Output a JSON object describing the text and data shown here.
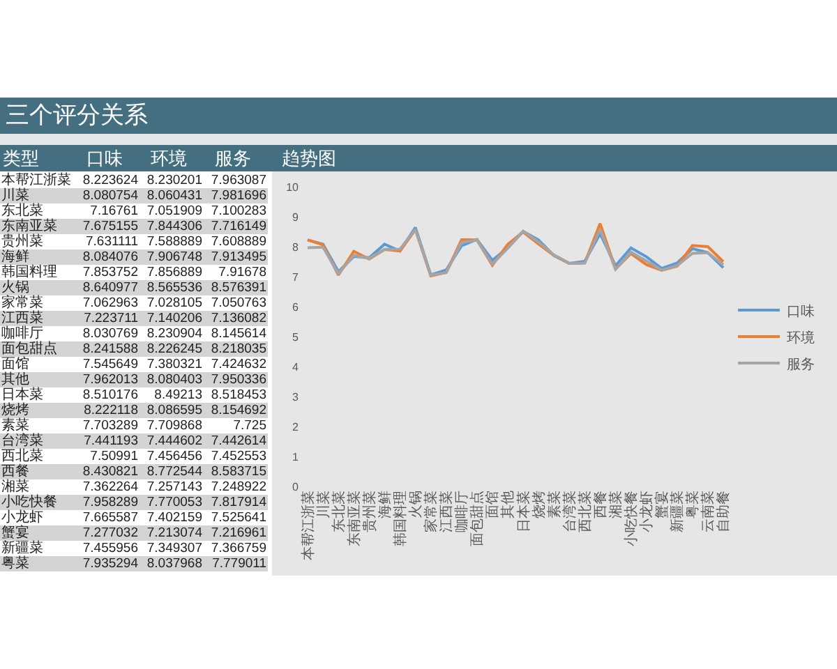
{
  "chart_data": {
    "type": "line",
    "title": "三个评分关系",
    "subtitle": "趋势图",
    "annotations": [
      "类型",
      "8.223624",
      "8.230201",
      "7.963087",
      "8.080754",
      "8.060431",
      "7.981696",
      "7.16761",
      "7.051909",
      "7.100283",
      "7.675155",
      "7.844306",
      "7.716149",
      "7.631111",
      "7.588889",
      "7.608889",
      "8.084076",
      "7.906748",
      "7.913495",
      "7.853752",
      "7.856889",
      "7.91678",
      "8.640977",
      "8.565536",
      "8.576391",
      "7.062963",
      "7.028105",
      "7.050763",
      "7.223711",
      "7.140206",
      "7.136082",
      "8.030769",
      "8.230904",
      "8.145614",
      "8.241588",
      "8.226245",
      "8.218035",
      "7.545649",
      "7.380321",
      "7.424632",
      "7.962013",
      "8.080403",
      "7.950336",
      "8.510176",
      "8.49213",
      "8.518453",
      "8.222118",
      "8.086595",
      "8.154692",
      "7.703289",
      "7.709868",
      "7.725",
      "7.441193",
      "7.444602",
      "7.442614",
      "7.50991",
      "7.456456",
      "7.452553",
      "8.430821",
      "8.772544",
      "8.583715",
      "7.362264",
      "7.257143",
      "7.248922",
      "7.958289",
      "7.770053",
      "7.817914",
      "7.665587",
      "7.402159",
      "7.525641",
      "7.277032",
      "7.213074",
      "7.216961",
      "7.455956",
      "7.349307",
      "7.366759",
      "7.935294",
      "8.037968",
      "7.779011"
    ],
    "categories": [
      "本帮江浙菜",
      "川菜",
      "东北菜",
      "东南亚菜",
      "贵州菜",
      "海鲜",
      "韩国料理",
      "火锅",
      "家常菜",
      "江西菜",
      "咖啡厅",
      "面包甜点",
      "面馆",
      "其他",
      "日本菜",
      "烧烤",
      "素菜",
      "台湾菜",
      "西北菜",
      "西餐",
      "湘菜",
      "小吃快餐",
      "小龙虾",
      "蟹宴",
      "新疆菜",
      "粤菜",
      "云南菜",
      "自助餐"
    ],
    "series": [
      {
        "name": "口味",
        "color": "#5b9bd5",
        "values": [
          8.223624,
          8.080754,
          7.16761,
          7.675155,
          7.631111,
          8.084076,
          7.853752,
          8.640977,
          7.062963,
          7.223711,
          8.030769,
          8.241588,
          7.545649,
          7.962013,
          8.510176,
          8.222118,
          7.703289,
          7.441193,
          7.50991,
          8.430821,
          7.362264,
          7.958289,
          7.665587,
          7.277032,
          7.455956,
          7.935294,
          7.8,
          7.3
        ]
      },
      {
        "name": "环境",
        "color": "#ed7d31",
        "values": [
          8.230201,
          8.060431,
          7.051909,
          7.844306,
          7.588889,
          7.906748,
          7.856889,
          8.565536,
          7.028105,
          7.140206,
          8.230904,
          8.226245,
          7.380321,
          8.080403,
          8.49213,
          8.086595,
          7.709868,
          7.444602,
          7.456456,
          8.772544,
          7.257143,
          7.770053,
          7.402159,
          7.213074,
          7.349307,
          8.037968,
          8.0,
          7.5
        ]
      },
      {
        "name": "服务",
        "color": "#a5a5a5",
        "values": [
          7.963087,
          7.981696,
          7.100283,
          7.716149,
          7.608889,
          7.913495,
          7.91678,
          8.576391,
          7.050763,
          7.136082,
          8.145614,
          8.218035,
          7.424632,
          7.950336,
          8.518453,
          8.154692,
          7.725,
          7.442614,
          7.452553,
          8.583715,
          7.248922,
          7.817914,
          7.525641,
          7.216961,
          7.366759,
          7.779011,
          7.8,
          7.4
        ]
      }
    ],
    "ylim": [
      0,
      10
    ],
    "yticks": [
      0,
      1,
      2,
      3,
      4,
      5,
      6,
      7,
      8,
      9,
      10
    ],
    "grid": false,
    "legend": "right"
  }
}
